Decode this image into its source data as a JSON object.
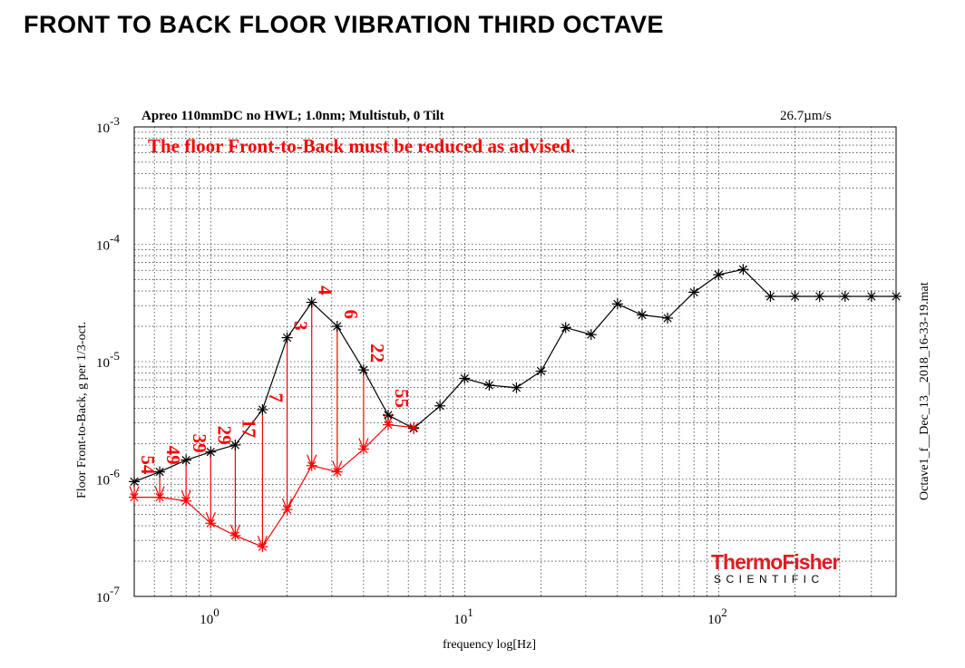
{
  "page_title": "FRONT TO BACK FLOOR VIBRATION THIRD OCTAVE",
  "colors": {
    "measured": "#000000",
    "target": "#ff0000",
    "logo": "#e31b23",
    "grid": "#000000"
  },
  "logo": {
    "line1": "ThermoFisher",
    "line2": "SCIENTIFIC"
  },
  "chart_data": {
    "type": "line",
    "title": "Apreo 110mmDC no HWL; 1.0nm; Multistub, 0 Tilt",
    "rms_label": "26.7µm/s",
    "warning": "The floor Front-to-Back must be reduced as advised.",
    "xlabel": "frequency  log[Hz]",
    "ylabel": "Floor Front-to-Back,  g per 1/3-oct.",
    "side_label": "Octave1_f__Dec_13__2018_16-33-19.mat",
    "x_scale": "log",
    "y_scale": "log",
    "xlim": [
      0.5,
      500
    ],
    "ylim": [
      1e-07,
      0.001
    ],
    "x_ticks": [
      {
        "base": "10",
        "exp": "0",
        "value": 1
      },
      {
        "base": "10",
        "exp": "1",
        "value": 10
      },
      {
        "base": "10",
        "exp": "2",
        "value": 100
      }
    ],
    "y_ticks": [
      {
        "base": "10",
        "exp": "-3",
        "value": 0.001
      },
      {
        "base": "10",
        "exp": "-4",
        "value": 0.0001
      },
      {
        "base": "10",
        "exp": "-5",
        "value": 1e-05
      },
      {
        "base": "10",
        "exp": "-6",
        "value": 1e-06
      },
      {
        "base": "10",
        "exp": "-7",
        "value": 1e-07
      }
    ],
    "grid": true,
    "series": [
      {
        "marker": "asterisk",
        "x": [
          0.5,
          0.63,
          0.8,
          1.0,
          1.25,
          1.6,
          2.0,
          2.5,
          3.15,
          4.0,
          5.0,
          6.3,
          8.0,
          10,
          12.5,
          16,
          20,
          25,
          31.5,
          40,
          50,
          63,
          80,
          100,
          125,
          160,
          200,
          250,
          315,
          400,
          500
        ],
        "y": [
          9.5e-07,
          1.15e-06,
          1.45e-06,
          1.7e-06,
          1.95e-06,
          3.9e-06,
          1.6e-05,
          3.2e-05,
          2e-05,
          8.5e-06,
          3.5e-06,
          2.7e-06,
          4.2e-06,
          7.2e-06,
          6.3e-06,
          6e-06,
          8.3e-06,
          1.95e-05,
          1.7e-05,
          3.1e-05,
          2.5e-05,
          2.35e-05,
          3.9e-05,
          5.5e-05,
          6.1e-05,
          3.6e-05,
          3.6e-05,
          3.6e-05,
          3.6e-05,
          3.6e-05,
          3.6e-05
        ]
      },
      {
        "marker": "asterisk",
        "x": [
          0.5,
          0.63,
          0.8,
          1.0,
          1.25,
          1.6,
          2.0,
          2.5,
          3.15,
          4.0,
          5.0,
          6.3
        ],
        "y": [
          7e-07,
          7e-07,
          6.5e-07,
          4.2e-07,
          3.3e-07,
          2.65e-07,
          5.5e-07,
          1.3e-06,
          1.15e-06,
          1.8e-06,
          2.9e-06,
          2.75e-06
        ]
      }
    ],
    "reductions": [
      {
        "x": 0.5,
        "label": "54"
      },
      {
        "x": 0.63,
        "label": "49"
      },
      {
        "x": 0.8,
        "label": "39"
      },
      {
        "x": 1.0,
        "label": "29"
      },
      {
        "x": 1.25,
        "label": "17"
      },
      {
        "x": 1.6,
        "label": "7"
      },
      {
        "x": 2.0,
        "label": "3"
      },
      {
        "x": 2.5,
        "label": "4"
      },
      {
        "x": 3.15,
        "label": "6"
      },
      {
        "x": 4.0,
        "label": "22"
      },
      {
        "x": 5.0,
        "label": "55"
      }
    ]
  }
}
